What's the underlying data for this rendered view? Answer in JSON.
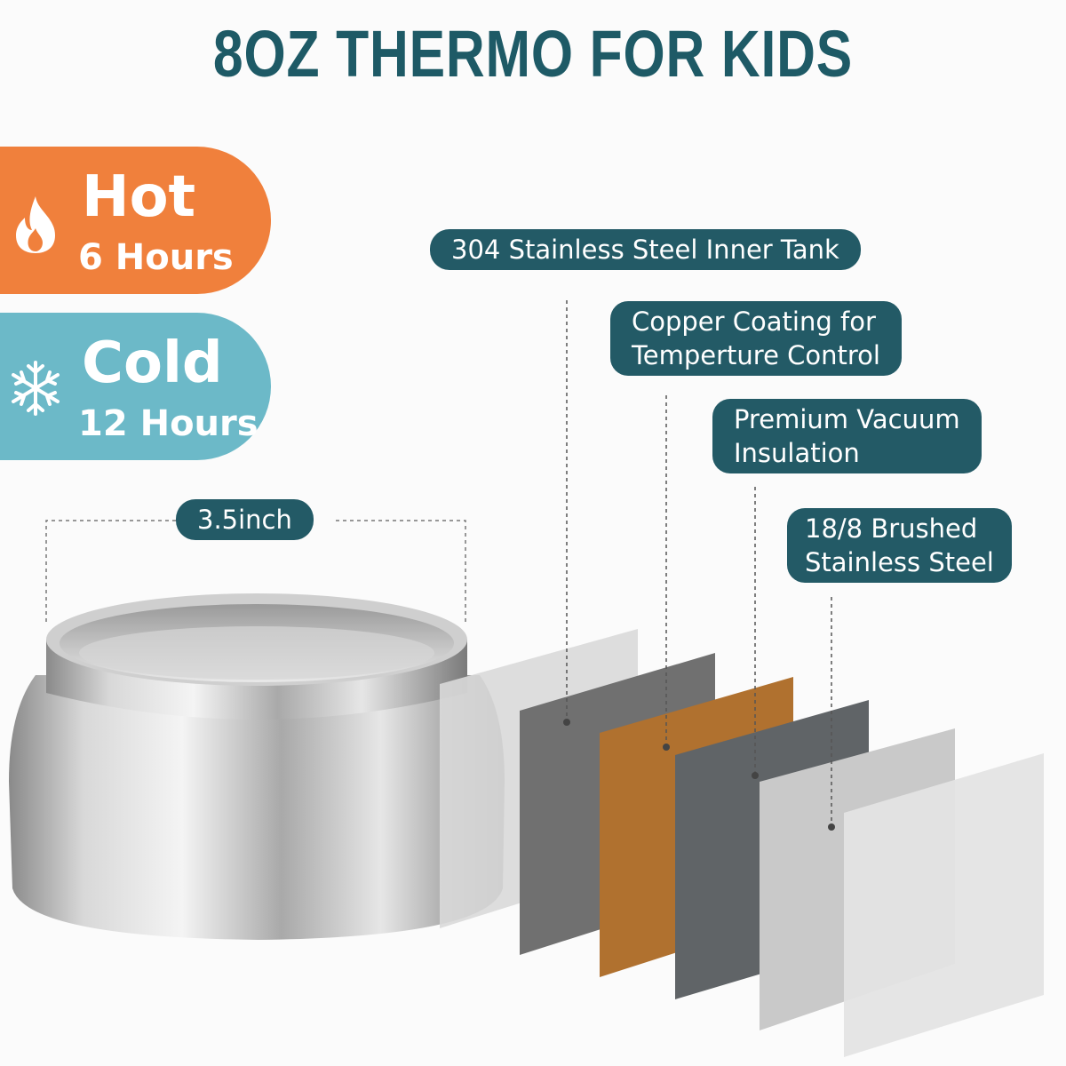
{
  "title": "8OZ THERMO FOR KIDS",
  "hot": {
    "label": "Hot",
    "duration": "6 Hours",
    "icon": "flame-icon",
    "color": "#f0803c"
  },
  "cold": {
    "label": "Cold",
    "duration": "12 Hours",
    "icon": "snowflake-icon",
    "color": "#6cb9c8"
  },
  "dimension": "3.5inch",
  "layers": [
    {
      "label": "304 Stainless Steel Inner Tank"
    },
    {
      "label_line1": "Copper Coating for",
      "label_line2": "Temperture Control"
    },
    {
      "label_line1": "Premium Vacuum",
      "label_line2": "Insulation"
    },
    {
      "label_line1": "18/8 Brushed",
      "label_line2": "Stainless Steel"
    }
  ],
  "colors": {
    "title": "#1e5a66",
    "label_bg": "#235a66",
    "copper": "#b0712f"
  }
}
